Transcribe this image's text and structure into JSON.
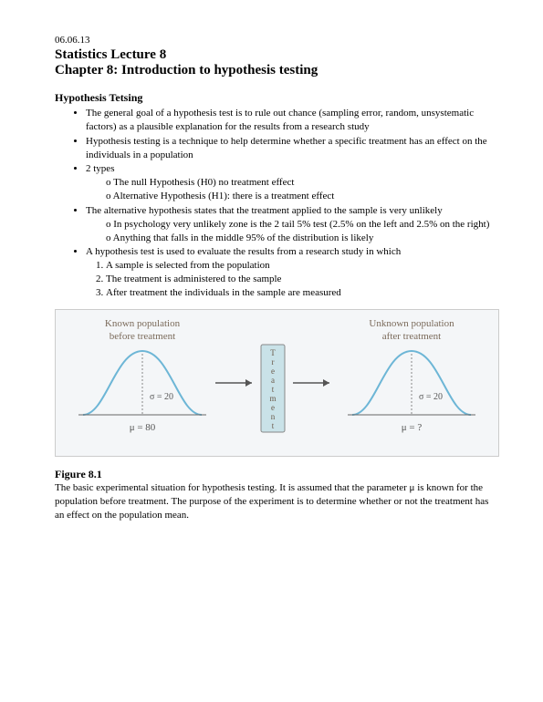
{
  "date": "06.06.13",
  "title": "Statistics Lecture 8",
  "chapter": "Chapter 8: Introduction to hypothesis testing",
  "section_head": "Hypothesis Tetsing",
  "bullets": {
    "b1": "The general goal of a hypothesis test is to rule out chance (sampling error, random, unsystematic factors) as a plausible explanation for the results from a research study",
    "b2": "Hypothesis testing is a technique to help determine whether a specific treatment has an effect on the individuals in a population",
    "b3": "2 types",
    "b3a": "The null Hypothesis (H0) no treatment effect",
    "b3b": "Alternative Hypothesis (H1): there is a treatment effect",
    "b4": "The alternative hypothesis states that the treatment applied to the sample is very unlikely",
    "b4a": "In psychology very unlikely zone is the 2 tail 5% test (2.5% on the left and 2.5% on the right)",
    "b4b": "Anything that falls in the middle 95% of the distribution is likely",
    "b5": "A hypothesis test is used to evaluate the results from a research study in which",
    "b5_1": "A sample is selected from the population",
    "b5_2": "The treatment is administered to the sample",
    "b5_3": "After treatment the individuals in the sample are measured"
  },
  "figure": {
    "left_label": "Known population before treatment",
    "right_label": "Unknown population after treatment",
    "center_label": "Treatment",
    "sigma_left": "σ = 20",
    "mu_left": "μ = 80",
    "sigma_right": "σ = 20",
    "mu_right": "μ = ?",
    "curve_color": "#6db6d6",
    "axis_color": "#666666",
    "box_fill": "#c9e2e8",
    "box_stroke": "#888888",
    "arrow_color": "#555555",
    "label_color": "#7a6a5a",
    "bg": "#f4f6f8"
  },
  "fig_caption_head": "Figure 8.1",
  "fig_caption": "The basic experimental situation for hypothesis testing. It is assumed that the parameter μ is known for the population before treatment. The purpose of the experiment is to determine whether or not the treatment has an effect on the population mean."
}
